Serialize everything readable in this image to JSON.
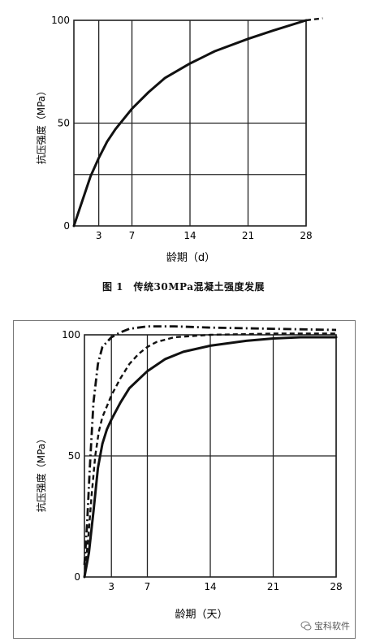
{
  "chart_data": [
    {
      "type": "line",
      "title": "",
      "xlabel": "龄期（d）",
      "ylabel": "抗压强度（MPa）",
      "xlim": [
        0,
        28
      ],
      "ylim": [
        0,
        100
      ],
      "xticks": [
        3,
        7,
        14,
        21,
        28
      ],
      "xtick_labels": [
        "3",
        "7",
        "14",
        "21",
        "28"
      ],
      "yticks": [
        0,
        50,
        100
      ],
      "ytick_labels": [
        "0",
        "50",
        "100"
      ],
      "grid": true,
      "series": [
        {
          "style": "solid",
          "x": [
            0,
            1,
            2,
            3,
            4,
            5,
            6,
            7,
            9,
            11,
            14,
            17,
            21,
            24,
            28
          ],
          "y": [
            0,
            12,
            24,
            33,
            41,
            47,
            52,
            57,
            65,
            72,
            79,
            85,
            91,
            95,
            100
          ]
        },
        {
          "style": "dashed",
          "x": [
            28,
            29,
            30
          ],
          "y": [
            100,
            100.5,
            101
          ]
        }
      ]
    },
    {
      "type": "line",
      "title": "",
      "xlabel": "龄期（天）",
      "ylabel": "抗压强度（MPa）",
      "xlim": [
        0,
        28
      ],
      "ylim": [
        0,
        100
      ],
      "xticks": [
        3,
        7,
        14,
        21,
        28
      ],
      "xtick_labels": [
        "3",
        "7",
        "14",
        "21",
        "28"
      ],
      "yticks": [
        0,
        50,
        100
      ],
      "ytick_labels": [
        "0",
        "50",
        "100"
      ],
      "grid": true,
      "series": [
        {
          "style": "dashdot",
          "x": [
            0,
            0.3,
            0.6,
            1,
            1.5,
            2,
            3,
            4,
            5,
            7,
            10,
            14,
            21,
            28
          ],
          "y": [
            5,
            22,
            45,
            72,
            88,
            95,
            99,
            101,
            102.5,
            103.5,
            103.5,
            103,
            102.5,
            102
          ]
        },
        {
          "style": "dashed",
          "x": [
            0,
            0.4,
            0.8,
            1.2,
            1.6,
            2,
            3,
            4,
            5,
            6,
            7,
            8,
            10,
            14,
            21,
            28
          ],
          "y": [
            0,
            15,
            34,
            50,
            60,
            66,
            75,
            82,
            88,
            92,
            95,
            97,
            99,
            100,
            100.5,
            100.5
          ]
        },
        {
          "style": "solid",
          "x": [
            0,
            0.5,
            1,
            1.5,
            2,
            2.5,
            3,
            4,
            5,
            7,
            9,
            11,
            14,
            18,
            21,
            24,
            28
          ],
          "y": [
            0,
            10,
            27,
            45,
            55,
            61,
            65,
            72,
            78,
            85,
            90,
            93,
            95.5,
            97.5,
            98.5,
            99,
            99
          ]
        }
      ]
    }
  ],
  "figure1": {
    "caption": "图 1　传统30MPa混凝土强度发展"
  },
  "watermark": {
    "text": "宝科软件"
  }
}
